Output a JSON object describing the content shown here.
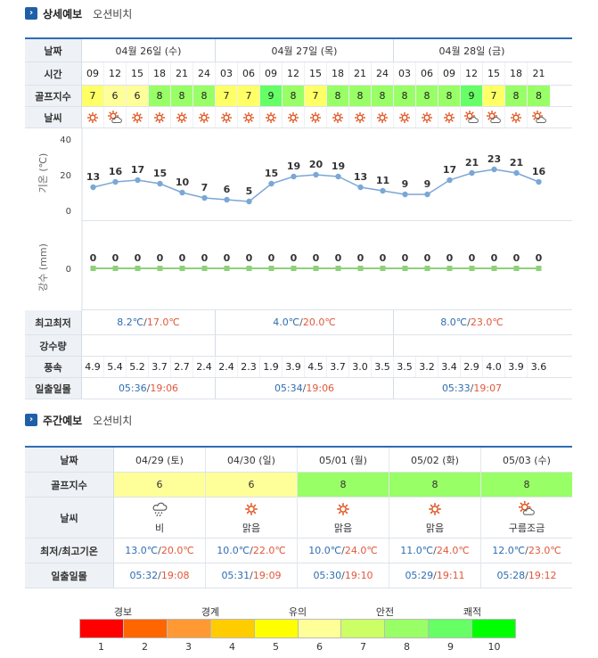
{
  "detail": {
    "heading": "상세예보",
    "place": "오션비치",
    "labels": {
      "date": "날짜",
      "time": "시간",
      "golf": "골프지수",
      "weather": "날씨",
      "temp_axis": "기온 (℃)",
      "rain_axis": "강수 (mm)",
      "minmax": "최고최저",
      "rain": "강수량",
      "wind": "풍속",
      "sun": "일출일몰"
    },
    "days": [
      {
        "label": "04월 26일 (수)",
        "count": 6,
        "tmin": "8.2℃",
        "tmax": "17.0℃",
        "sunrise": "05:36",
        "sunset": "19:06"
      },
      {
        "label": "04월 27일 (목)",
        "count": 8,
        "tmin": "4.0℃",
        "tmax": "20.0℃",
        "sunrise": "05:34",
        "sunset": "19:06"
      },
      {
        "label": "04월 28일 (금)",
        "count": 7,
        "tmin": "8.0℃",
        "tmax": "23.0℃",
        "sunrise": "05:33",
        "sunset": "19:07"
      }
    ],
    "times": [
      "09",
      "12",
      "15",
      "18",
      "21",
      "24",
      "03",
      "06",
      "09",
      "12",
      "15",
      "18",
      "21",
      "24",
      "03",
      "06",
      "09",
      "12",
      "15",
      "18",
      "21"
    ],
    "golf": [
      7,
      6,
      6,
      8,
      8,
      8,
      7,
      7,
      9,
      8,
      7,
      8,
      8,
      8,
      8,
      8,
      8,
      9,
      7,
      8,
      8
    ],
    "weather_icons": [
      "sun",
      "cloud",
      "sun",
      "sun",
      "sun",
      "sun",
      "sun",
      "sun",
      "sun",
      "sun",
      "sun",
      "sun",
      "sun",
      "sun",
      "sun",
      "sun",
      "sun",
      "cloud",
      "cloud",
      "sun",
      "cloud"
    ],
    "wind": [
      "4.9",
      "5.4",
      "5.2",
      "3.7",
      "2.7",
      "2.4",
      "2.4",
      "2.3",
      "1.9",
      "3.9",
      "4.5",
      "3.7",
      "3.0",
      "3.5",
      "3.5",
      "3.2",
      "3.4",
      "2.9",
      "4.0",
      "3.9",
      "3.6"
    ]
  },
  "chart_data": [
    {
      "type": "line",
      "x": [
        "09",
        "12",
        "15",
        "18",
        "21",
        "24",
        "03",
        "06",
        "09",
        "12",
        "15",
        "18",
        "21",
        "24",
        "03",
        "06",
        "09",
        "12",
        "15",
        "18",
        "21"
      ],
      "values": [
        13,
        16,
        17,
        15,
        10,
        7,
        6,
        5,
        15,
        19,
        20,
        19,
        13,
        11,
        9,
        9,
        17,
        21,
        23,
        21,
        16
      ],
      "ylabel": "기온 (℃)",
      "ylim": [
        0,
        40
      ],
      "yticks": [
        "0",
        "20",
        "40"
      ],
      "color": "#7ba7d6"
    },
    {
      "type": "line",
      "x": [
        "09",
        "12",
        "15",
        "18",
        "21",
        "24",
        "03",
        "06",
        "09",
        "12",
        "15",
        "18",
        "21",
        "24",
        "03",
        "06",
        "09",
        "12",
        "15",
        "18",
        "21"
      ],
      "values": [
        0,
        0,
        0,
        0,
        0,
        0,
        0,
        0,
        0,
        0,
        0,
        0,
        0,
        0,
        0,
        0,
        0,
        0,
        0,
        0,
        0
      ],
      "ylabel": "강수 (mm)",
      "yticks": [
        "0"
      ],
      "color": "#8fd07a"
    }
  ],
  "weekly": {
    "heading": "주간예보",
    "place": "오션비치",
    "labels": {
      "date": "날짜",
      "golf": "골프지수",
      "weather": "날씨",
      "temp": "최저/최고기온",
      "sun": "일출일몰"
    },
    "days": [
      {
        "date": "04/29 (토)",
        "golf": 6,
        "icon": "rain",
        "desc": "비",
        "tmin": "13.0℃",
        "tmax": "20.0℃",
        "sunrise": "05:32",
        "sunset": "19:08"
      },
      {
        "date": "04/30 (일)",
        "golf": 6,
        "icon": "sun",
        "desc": "맑음",
        "tmin": "10.0℃",
        "tmax": "22.0℃",
        "sunrise": "05:31",
        "sunset": "19:09"
      },
      {
        "date": "05/01 (월)",
        "golf": 8,
        "icon": "sun",
        "desc": "맑음",
        "tmin": "10.0℃",
        "tmax": "24.0℃",
        "sunrise": "05:30",
        "sunset": "19:10"
      },
      {
        "date": "05/02 (화)",
        "golf": 8,
        "icon": "sun",
        "desc": "맑음",
        "tmin": "11.0℃",
        "tmax": "24.0℃",
        "sunrise": "05:29",
        "sunset": "19:11"
      },
      {
        "date": "05/03 (수)",
        "golf": 8,
        "icon": "cloud",
        "desc": "구름조금",
        "tmin": "12.0℃",
        "tmax": "23.0℃",
        "sunrise": "05:28",
        "sunset": "19:12"
      }
    ]
  },
  "scale": {
    "labels": [
      "경보",
      "경계",
      "유의",
      "안전",
      "쾌적"
    ],
    "numbers": [
      "1",
      "2",
      "3",
      "4",
      "5",
      "6",
      "7",
      "8",
      "9",
      "10"
    ],
    "colors": [
      "#ff0000",
      "#ff6600",
      "#ff9933",
      "#ffcc00",
      "#ffff00",
      "#ffff99",
      "#ccff66",
      "#99ff66",
      "#66ff66",
      "#00ff00"
    ]
  },
  "golf_colors": {
    "6": "#ffff99",
    "7": "#ffff66",
    "8": "#99ff66",
    "9": "#66ff66"
  }
}
